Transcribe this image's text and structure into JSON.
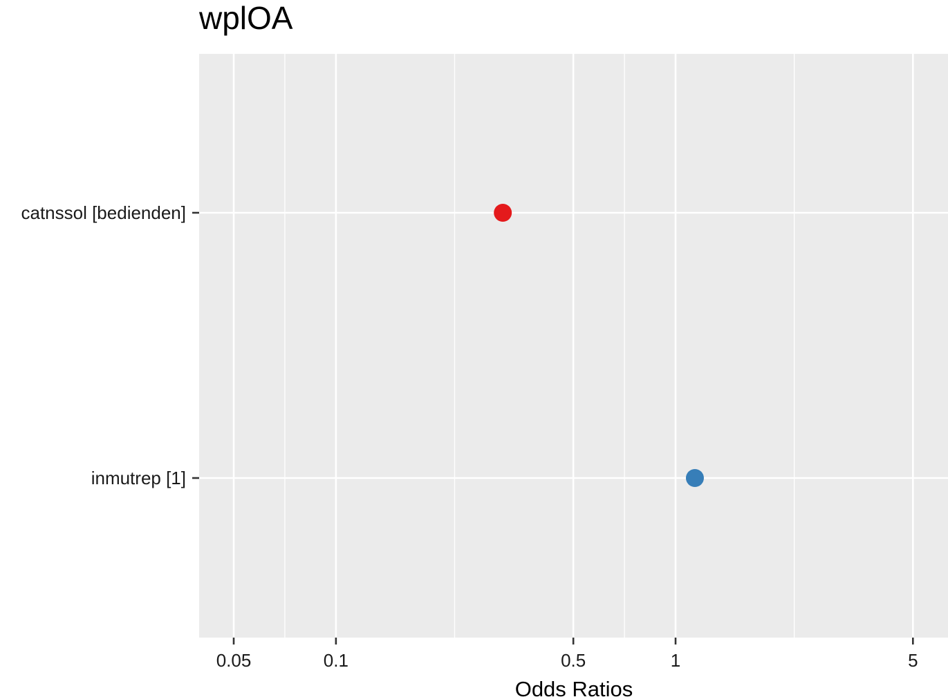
{
  "chart_data": {
    "type": "scatter",
    "title": "wplOA",
    "xlabel": "Odds Ratios",
    "ylabel": "",
    "x_scale": "log10",
    "xlim": [
      0.04,
      6.2
    ],
    "x_major_ticks": [
      0.05,
      0.1,
      0.5,
      1,
      5
    ],
    "x_tick_labels": [
      "0.05",
      "0.1",
      "0.5",
      "1",
      "5"
    ],
    "x_minor_ticks": [
      0.0707,
      0.2236,
      0.7071,
      2.2361
    ],
    "categories": [
      "catnssol [bedienden]",
      "inmutrep [1]"
    ],
    "points": [
      {
        "category": "catnssol [bedienden]",
        "x": 0.31,
        "color": "#e41a1c"
      },
      {
        "category": "inmutrep [1]",
        "x": 1.14,
        "color": "#377eb8"
      }
    ],
    "grid": true,
    "panel_background": "#ebebeb",
    "grid_color": "#ffffff"
  }
}
